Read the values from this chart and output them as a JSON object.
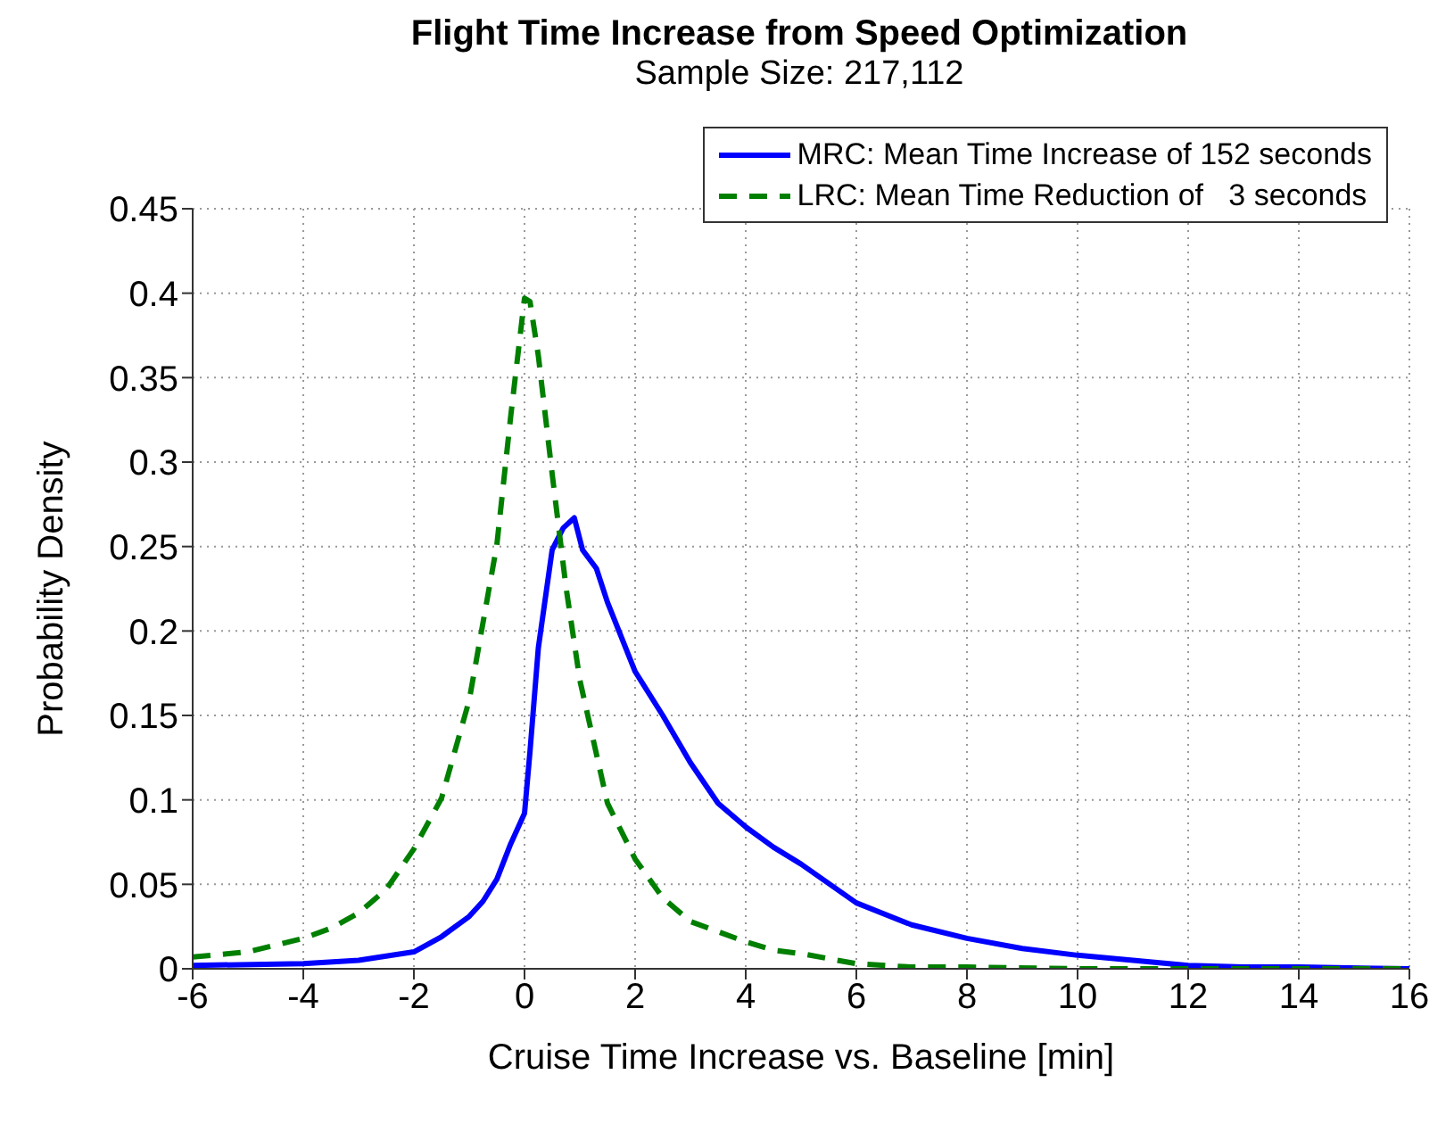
{
  "chart_data": {
    "type": "line",
    "title": "Flight Time Increase from Speed Optimization",
    "subtitle": "Sample Size: 217,112",
    "xlabel": "Cruise Time Increase vs. Baseline [min]",
    "ylabel": "Probability Density",
    "xlim": [
      -6,
      16
    ],
    "xticks": [
      -6,
      -4,
      -2,
      0,
      2,
      4,
      6,
      8,
      10,
      12,
      14,
      16
    ],
    "ylim": [
      0,
      0.45
    ],
    "yticks": [
      0,
      0.05,
      0.1,
      0.15,
      0.2,
      0.25,
      0.3,
      0.35,
      0.4,
      0.45
    ],
    "grid": true,
    "legend": "top right",
    "marker": "none",
    "series": [
      {
        "name": "MRC: Mean Time Increase of 152 seconds",
        "color": "#0000ff",
        "line_style": "solid",
        "x": [
          -6,
          -4,
          -3,
          -2,
          -1.5,
          -1,
          -0.75,
          -0.5,
          -0.25,
          0,
          0.1,
          0.25,
          0.5,
          0.7,
          0.9,
          1.05,
          1.3,
          1.5,
          2,
          2.5,
          3,
          3.5,
          4,
          4.5,
          5,
          6,
          7,
          8,
          9,
          10,
          11,
          12,
          13,
          14,
          16
        ],
        "values": [
          0.002,
          0.003,
          0.005,
          0.01,
          0.019,
          0.031,
          0.04,
          0.053,
          0.074,
          0.092,
          0.129,
          0.19,
          0.248,
          0.261,
          0.267,
          0.248,
          0.237,
          0.217,
          0.176,
          0.15,
          0.122,
          0.098,
          0.084,
          0.072,
          0.062,
          0.039,
          0.026,
          0.018,
          0.012,
          0.008,
          0.005,
          0.002,
          0.001,
          0.001,
          0
        ]
      },
      {
        "name": "LRC: Mean Time Reduction of   3 seconds",
        "color": "#007f00",
        "line_style": "dashed",
        "x": [
          -6,
          -5,
          -4,
          -3.5,
          -3,
          -2.5,
          -2,
          -1.5,
          -1,
          -0.5,
          -0.25,
          0,
          0.1,
          0.25,
          0.5,
          0.75,
          1,
          1.5,
          2,
          2.5,
          3,
          3.5,
          4,
          4.5,
          5,
          6,
          7,
          8,
          10,
          12,
          16
        ],
        "values": [
          0.007,
          0.01,
          0.018,
          0.024,
          0.033,
          0.047,
          0.071,
          0.101,
          0.159,
          0.251,
          0.327,
          0.397,
          0.395,
          0.363,
          0.293,
          0.226,
          0.171,
          0.098,
          0.065,
          0.042,
          0.028,
          0.022,
          0.016,
          0.011,
          0.009,
          0.003,
          0.001,
          0.001,
          0,
          0,
          0
        ]
      }
    ]
  }
}
